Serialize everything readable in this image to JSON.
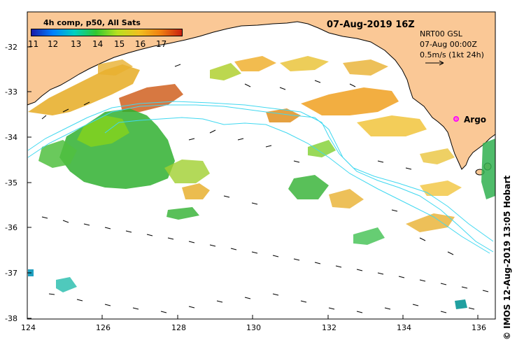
{
  "legend": {
    "title": "4h comp, p50, All Sats",
    "ticks": [
      "11",
      "12",
      "13",
      "14",
      "15",
      "16",
      "17"
    ]
  },
  "date_title": "07-Aug-2019 16Z",
  "info": {
    "line1": "NRT00 GSL",
    "line2": "07-Aug 00:00Z",
    "line3": "0.5m/s (1kt 24h)"
  },
  "argo_label": "Argo",
  "credit": "© IMOS 12-Aug-2019 13:05 Hobart",
  "axes": {
    "lat_labels": [
      "-32",
      "-33",
      "-34",
      "-35",
      "-36",
      "-37",
      "-38"
    ],
    "lon_labels": [
      "124",
      "126",
      "128",
      "130",
      "132",
      "134",
      "136"
    ]
  },
  "colors": {
    "land": "#fac896",
    "coast": "#000000",
    "contour": "#40d8f0",
    "argo": "#ff00ff"
  }
}
